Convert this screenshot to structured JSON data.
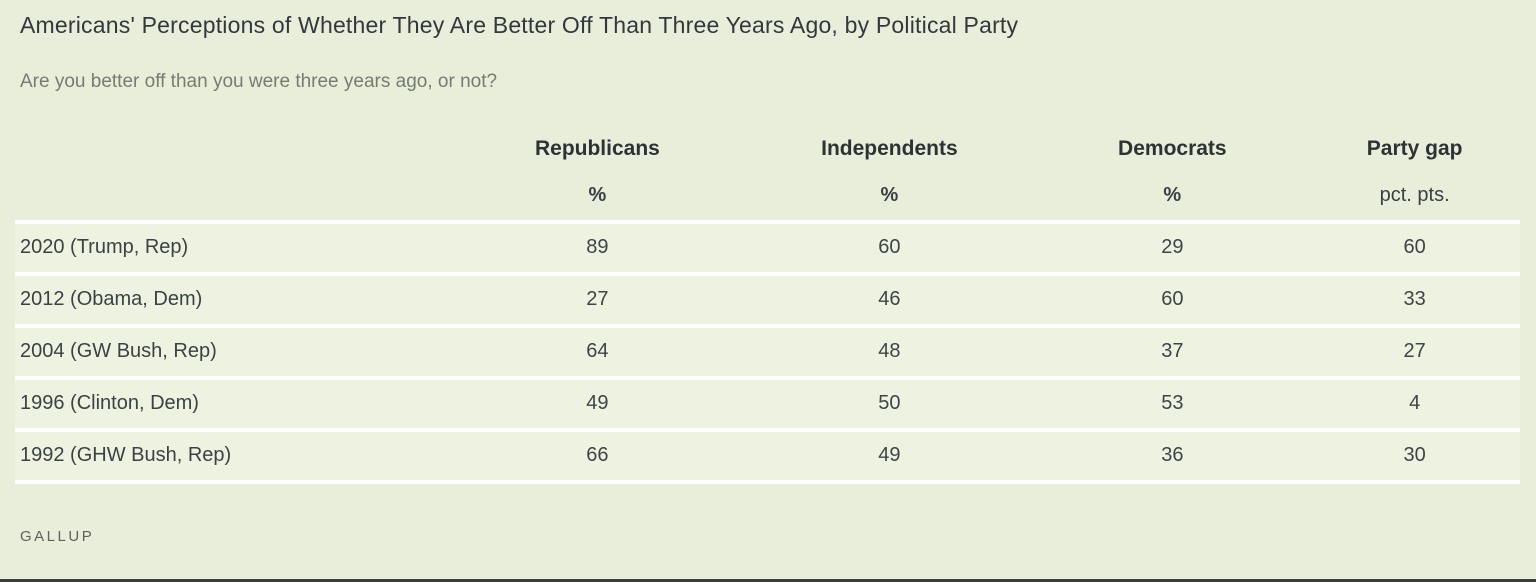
{
  "title": "Americans' Perceptions of Whether They Are Better Off Than Three Years Ago, by Political Party",
  "subtitle": "Are you better off than you were three years ago, or not?",
  "source": "GALLUP",
  "colors": {
    "page_bg": "#e9eeda",
    "row_bg": "#eef3e1",
    "separator": "#ffffff",
    "title_text": "#32383c",
    "subtitle_text": "#767c72",
    "header_text": "#2d3335",
    "cell_text": "#3f4547",
    "source_text": "#5c625e",
    "bottom_bar": "#3a3f3b"
  },
  "chart_data": {
    "type": "table",
    "title": "Americans' Perceptions of Whether They Are Better Off Than Three Years Ago, by Political Party",
    "subtitle": "Are you better off than you were three years ago, or not?",
    "columns": [
      "",
      "Republicans",
      "Independents",
      "Democrats",
      "Party gap"
    ],
    "units": [
      "",
      "%",
      "%",
      "%",
      "pct. pts."
    ],
    "rows": [
      {
        "label": "2020 (Trump, Rep)",
        "values": [
          "89",
          "60",
          "29",
          "60"
        ]
      },
      {
        "label": "2012 (Obama, Dem)",
        "values": [
          "27",
          "46",
          "60",
          "33"
        ]
      },
      {
        "label": "2004 (GW Bush, Rep)",
        "values": [
          "64",
          "48",
          "37",
          "27"
        ]
      },
      {
        "label": "1996 (Clinton, Dem)",
        "values": [
          "49",
          "50",
          "53",
          "4"
        ]
      },
      {
        "label": "1992 (GHW Bush, Rep)",
        "values": [
          "66",
          "49",
          "36",
          "30"
        ]
      }
    ],
    "source": "GALLUP",
    "layout": {
      "grid": "white row separators",
      "value_alignment": "center",
      "label_alignment": "left"
    }
  }
}
